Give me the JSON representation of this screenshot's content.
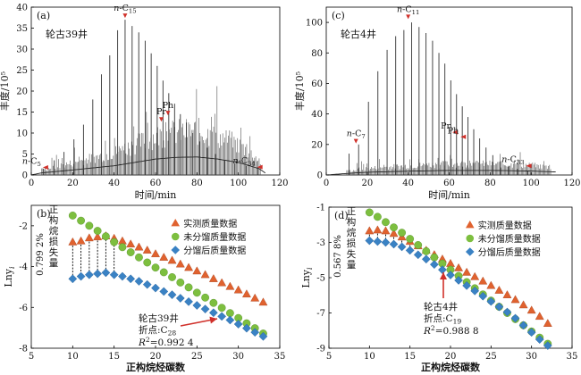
{
  "chart_data": [
    {
      "type": "line",
      "panel_label": "(a)",
      "well_name": "轮古39井",
      "xlabel": "时间/min",
      "ylabel": "丰度/10⁵",
      "xlim": [
        0,
        120
      ],
      "ylim": [
        0,
        40
      ],
      "xticks": [
        0,
        20,
        40,
        60,
        80,
        100,
        120
      ],
      "yticks": [
        0,
        5,
        10,
        15,
        20,
        25,
        30,
        35,
        40
      ],
      "peaks": {
        "x": [
          5.9,
          11.1,
          15.8,
          20.6,
          25.2,
          29.7,
          33.9,
          37.9,
          41.7,
          45.3,
          48.7,
          51.9,
          55.0,
          57.9,
          60.8,
          63.6,
          66.4,
          69.2,
          72.0,
          74.9,
          78.0,
          81.3,
          85.0,
          89.0,
          93.4,
          98.3,
          103.7,
          109.5
        ],
        "y": [
          1.5,
          3.5,
          5.5,
          8.5,
          12.0,
          18.0,
          24.0,
          28.5,
          34.5,
          37.0,
          35.5,
          34.0,
          32.0,
          29.0,
          26.0,
          22.5,
          19.5,
          17.0,
          14.5,
          12.5,
          10.0,
          8.0,
          6.5,
          5.0,
          3.5,
          2.8,
          2.2,
          1.8
        ]
      },
      "baseline": {
        "x": [
          0,
          5,
          20,
          40,
          50,
          60,
          70,
          80,
          90,
          100,
          110,
          113
        ],
        "y": [
          0,
          0.5,
          1.2,
          2.2,
          3.0,
          3.8,
          4.2,
          4.3,
          3.8,
          3.0,
          1.5,
          0.5
        ]
      },
      "annotations": [
        {
          "text": "n-C",
          "sub": "5",
          "x": 6,
          "y": 1.8,
          "arrow": "left"
        },
        {
          "text": "n-C",
          "sub": "15",
          "x": 45.3,
          "y": 37.0,
          "arrow": "down"
        },
        {
          "text": "Pr",
          "sub": "",
          "x": 62.8,
          "y": 12.3,
          "arrow": "down"
        },
        {
          "text": "Ph",
          "sub": "",
          "x": 66.0,
          "y": 13.8,
          "arrow": "down"
        },
        {
          "text": "n-C",
          "sub": "34",
          "x": 109.5,
          "y": 1.9,
          "arrow": "left"
        }
      ]
    },
    {
      "type": "line",
      "panel_label": "(c)",
      "well_name": "轮古4井",
      "xlabel": "时间/min",
      "ylabel": "丰度/10⁵",
      "xlim": [
        0,
        120
      ],
      "ylim": [
        0,
        110
      ],
      "xticks": [
        0,
        20,
        40,
        60,
        80,
        100,
        120
      ],
      "yticks": [
        0,
        20,
        40,
        60,
        80,
        100
      ],
      "peaks": {
        "x": [
          11.1,
          15.8,
          20.6,
          25.2,
          29.7,
          33.9,
          37.9,
          41.7,
          45.3,
          48.7,
          51.9,
          55.0,
          57.9,
          60.8,
          63.6,
          66.4,
          69.2,
          72.0,
          74.9,
          78.0,
          81.3,
          85.0,
          89.0,
          93.4,
          98.3
        ],
        "y": [
          14.0,
          20.0,
          48.0,
          68.0,
          82.0,
          91.0,
          95.0,
          100.0,
          97.0,
          93.0,
          88.0,
          80.0,
          73.0,
          62.0,
          53.0,
          45.0,
          38.0,
          30.0,
          24.0,
          18.0,
          13.0,
          9.0,
          6.0,
          4.0,
          2.5
        ]
      },
      "baseline": {
        "x": [
          0,
          10,
          20,
          40,
          60,
          80,
          100,
          112
        ],
        "y": [
          0,
          1.0,
          1.8,
          2.5,
          3.0,
          3.0,
          2.6,
          2.0
        ]
      },
      "annotations": [
        {
          "text": "n-C",
          "sub": "7",
          "x": 14.5,
          "y": 19.5,
          "arrow": "down"
        },
        {
          "text": "n-C",
          "sub": "11",
          "x": 40.0,
          "y": 101.0,
          "arrow": "down"
        },
        {
          "text": "Pr",
          "sub": "",
          "x": 62.0,
          "y": 28.0,
          "arrow": "left"
        },
        {
          "text": "Ph",
          "sub": "",
          "x": 66.0,
          "y": 25.0,
          "arrow": "left"
        },
        {
          "text": "n-C",
          "sub": "33",
          "x": 98.0,
          "y": 6.0,
          "arrow": "left"
        }
      ]
    },
    {
      "type": "scatter",
      "panel_label": "(b)",
      "xlabel": "正构烷烃碳数",
      "ylabel": "Lny",
      "ylabel_sub": "i",
      "xlim": [
        5,
        35
      ],
      "ylim": [
        -8,
        -1
      ],
      "xticks": [
        5,
        10,
        15,
        20,
        25,
        30,
        35
      ],
      "yticks": [
        -8,
        -6,
        -4,
        -2
      ],
      "series": [
        {
          "name": "实测质量数据",
          "marker": "triangle",
          "color": "#e0622f",
          "x": [
            10,
            11,
            12,
            13,
            14,
            15,
            16,
            17,
            18,
            19,
            20,
            21,
            22,
            23,
            24,
            25,
            26,
            27,
            28,
            29,
            30,
            31,
            32,
            33
          ],
          "y": [
            -2.8,
            -2.75,
            -2.6,
            -2.55,
            -2.5,
            -2.62,
            -2.75,
            -2.9,
            -3.05,
            -3.2,
            -3.38,
            -3.55,
            -3.7,
            -3.88,
            -4.05,
            -4.22,
            -4.4,
            -4.6,
            -4.8,
            -4.98,
            -5.15,
            -5.35,
            -5.55,
            -5.75
          ]
        },
        {
          "name": "未分馏质量数据",
          "marker": "circle",
          "color": "#7dbf3f",
          "x": [
            10,
            11,
            12,
            13,
            14,
            15,
            16,
            17,
            18,
            19,
            20,
            21,
            22,
            23,
            24,
            25,
            26,
            27,
            28,
            29,
            30,
            31,
            32,
            33
          ],
          "y": [
            -1.5,
            -1.75,
            -2.0,
            -2.25,
            -2.52,
            -2.8,
            -3.05,
            -3.3,
            -3.55,
            -3.8,
            -4.05,
            -4.28,
            -4.52,
            -4.78,
            -5.02,
            -5.28,
            -5.52,
            -5.78,
            -6.02,
            -6.28,
            -6.52,
            -6.78,
            -7.02,
            -7.28
          ]
        },
        {
          "name": "分馏后质量数据",
          "marker": "diamond",
          "color": "#3a82c4",
          "x": [
            10,
            11,
            12,
            13,
            14,
            15,
            16,
            17,
            18,
            19,
            20,
            21,
            22,
            23,
            24,
            25,
            26,
            27,
            28,
            29,
            30,
            31,
            32,
            33
          ],
          "y": [
            -4.6,
            -4.48,
            -4.4,
            -4.35,
            -4.3,
            -4.4,
            -4.48,
            -4.6,
            -4.72,
            -4.88,
            -5.05,
            -5.22,
            -5.38,
            -5.55,
            -5.72,
            -5.9,
            -6.08,
            -6.26,
            -6.44,
            -6.62,
            -6.82,
            -7.02,
            -7.22,
            -7.42
          ]
        }
      ],
      "side_label_value": "0.799 2%",
      "side_label_text": [
        "正",
        "构",
        "烷",
        "损",
        "失",
        "量"
      ],
      "annotation": {
        "well": "轮古39井",
        "break_point_prefix": "折点:C",
        "break_point_sub": "28",
        "r2_prefix": "R",
        "r2_sup": "2",
        "r2_value": "=0.992 4"
      }
    },
    {
      "type": "scatter",
      "panel_label": "(d)",
      "xlabel": "正构烷烃碳数",
      "ylabel": "Lny",
      "ylabel_sub": "i",
      "xlim": [
        5,
        35
      ],
      "ylim": [
        -9,
        -1
      ],
      "xticks": [
        5,
        10,
        15,
        20,
        25,
        30,
        35
      ],
      "yticks": [
        -9,
        -7,
        -5,
        -3,
        -1
      ],
      "series": [
        {
          "name": "实测质量数据",
          "marker": "triangle",
          "color": "#e0622f",
          "x": [
            10,
            11,
            12,
            13,
            14,
            15,
            16,
            17,
            18,
            19,
            20,
            21,
            22,
            23,
            24,
            25,
            26,
            27,
            28,
            29,
            30,
            31,
            32
          ],
          "y": [
            -2.35,
            -2.3,
            -2.35,
            -2.5,
            -2.7,
            -2.95,
            -3.2,
            -3.45,
            -3.7,
            -3.95,
            -4.2,
            -4.45,
            -4.7,
            -4.95,
            -5.2,
            -5.45,
            -5.72,
            -5.98,
            -6.25,
            -6.55,
            -6.85,
            -7.2,
            -7.6
          ]
        },
        {
          "name": "未分馏质量数据",
          "marker": "circle",
          "color": "#7dbf3f",
          "x": [
            10,
            11,
            12,
            13,
            14,
            15,
            16,
            17,
            18,
            19,
            20,
            21,
            22,
            23,
            24,
            25,
            26,
            27,
            28,
            29,
            30,
            31,
            32
          ],
          "y": [
            -1.3,
            -1.55,
            -1.85,
            -2.15,
            -2.45,
            -2.8,
            -3.15,
            -3.5,
            -3.85,
            -4.2,
            -4.55,
            -4.9,
            -5.25,
            -5.6,
            -5.95,
            -6.3,
            -6.65,
            -7.0,
            -7.35,
            -7.7,
            -8.05,
            -8.4,
            -8.75
          ]
        },
        {
          "name": "分馏后质量数据",
          "marker": "diamond",
          "color": "#3a82c4",
          "x": [
            10,
            11,
            12,
            13,
            14,
            15,
            16,
            17,
            18,
            19,
            20,
            21,
            22,
            23,
            24,
            25,
            26,
            27,
            28,
            29,
            30,
            31,
            32
          ],
          "y": [
            -2.9,
            -2.95,
            -3.0,
            -3.1,
            -3.25,
            -3.45,
            -3.7,
            -3.95,
            -4.25,
            -4.55,
            -4.85,
            -5.15,
            -5.45,
            -5.75,
            -6.05,
            -6.35,
            -6.65,
            -6.95,
            -7.3,
            -7.7,
            -8.1,
            -8.5,
            -8.85
          ]
        }
      ],
      "side_label_value": "0.567 8%",
      "side_label_text": [
        "正",
        "构",
        "烷",
        "损",
        "失",
        "量"
      ],
      "annotation": {
        "well": "轮古4井",
        "break_point_prefix": "折点:C",
        "break_point_sub": "19",
        "r2_prefix": "R",
        "r2_sup": "2",
        "r2_value": "=0.988 8"
      }
    }
  ]
}
